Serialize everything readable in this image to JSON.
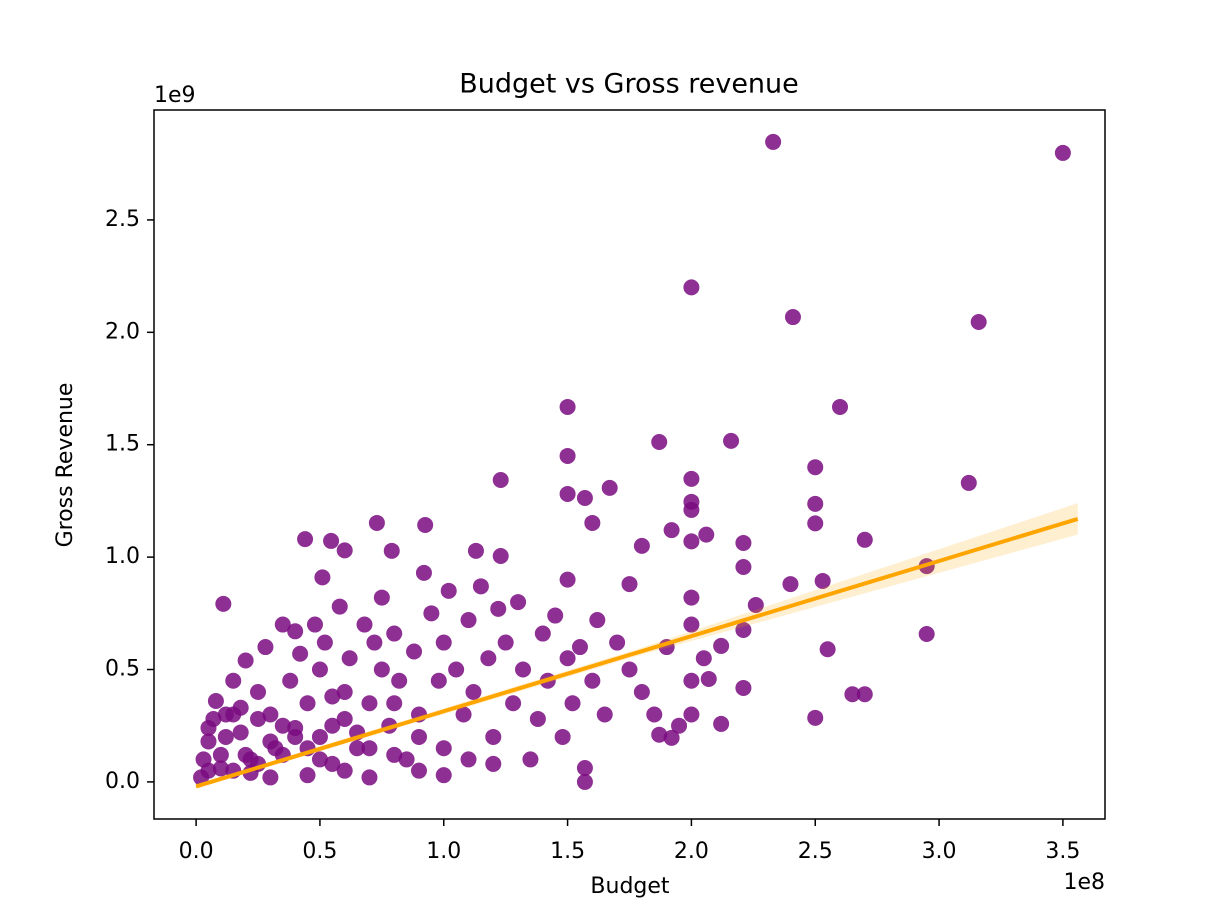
{
  "chart_data": {
    "type": "scatter",
    "title": "Budget vs Gross revenue",
    "x_label": "Budget",
    "y_label": "Gross Revenue",
    "x_offset_label": "1e8",
    "y_offset_label": "1e9",
    "point_color": "#7a0a80",
    "line_color": "#ffa500",
    "band_color": "#ffa500",
    "xlim": [
      -17000000.0,
      367000000.0
    ],
    "ylim": [
      -165000000.0,
      2989000000.0
    ],
    "xticks": [
      {
        "value": 0,
        "label": "0.0"
      },
      {
        "value": 50000000.0,
        "label": "0.5"
      },
      {
        "value": 100000000.0,
        "label": "1.0"
      },
      {
        "value": 150000000.0,
        "label": "1.5"
      },
      {
        "value": 200000000.0,
        "label": "2.0"
      },
      {
        "value": 250000000.0,
        "label": "2.5"
      },
      {
        "value": 300000000.0,
        "label": "3.0"
      },
      {
        "value": 350000000.0,
        "label": "3.5"
      }
    ],
    "yticks": [
      {
        "value": 0,
        "label": "0.0"
      },
      {
        "value": 500000000.0,
        "label": "0.5"
      },
      {
        "value": 1000000000.0,
        "label": "1.0"
      },
      {
        "value": 1500000000.0,
        "label": "1.5"
      },
      {
        "value": 2000000000.0,
        "label": "2.0"
      },
      {
        "value": 2500000000.0,
        "label": "2.5"
      }
    ],
    "x": [
      233000000.0,
      350000000.0,
      200000000.0,
      241000000.0,
      316000000.0,
      150000000.0,
      260000000.0,
      187000000.0,
      216000000.0,
      150000000.0,
      123000000.0,
      200000000.0,
      250000000.0,
      312000000.0,
      167000000.0,
      157000000.0,
      150000000.0,
      200000000.0,
      250000000.0,
      200000000.0,
      160000000.0,
      192000000.0,
      206000000.0,
      250000000.0,
      270000000.0,
      221000000.0,
      200000000.0,
      180000000.0,
      44000000.0,
      54500000.0,
      73000000.0,
      92500000.0,
      60000000.0,
      79000000.0,
      113000000.0,
      123000000.0,
      11000000.0,
      51000000.0,
      221000000.0,
      295000000.0,
      253000000.0,
      240000000.0,
      295000000.0,
      255000000.0,
      221000000.0,
      265000000.0,
      270000000.0,
      250000000.0,
      212000000.0,
      157000000.0,
      157000000.0,
      226000000.0,
      212000000.0,
      221000000.0,
      207000000.0,
      187000000.0,
      192000000.0,
      5000000.0,
      5000000.0,
      10000000.0,
      5000000.0,
      2000000.0,
      8000000.0,
      12000000.0,
      15000000.0,
      18000000.0,
      20000000.0,
      22000000.0,
      25000000.0,
      28000000.0,
      30000000.0,
      32000000.0,
      35000000.0,
      38000000.0,
      40000000.0,
      40000000.0,
      42000000.0,
      45000000.0,
      48000000.0,
      50000000.0,
      50000000.0,
      52000000.0,
      55000000.0,
      58000000.0,
      60000000.0,
      62000000.0,
      65000000.0,
      68000000.0,
      70000000.0,
      72000000.0,
      75000000.0,
      75000000.0,
      78000000.0,
      80000000.0,
      82000000.0,
      85000000.0,
      88000000.0,
      90000000.0,
      92000000.0,
      95000000.0,
      98000000.0,
      100000000.0,
      100000000.0,
      102000000.0,
      105000000.0,
      108000000.0,
      110000000.0,
      112000000.0,
      115000000.0,
      118000000.0,
      120000000.0,
      122000000.0,
      125000000.0,
      128000000.0,
      130000000.0,
      132000000.0,
      135000000.0,
      138000000.0,
      140000000.0,
      142000000.0,
      145000000.0,
      148000000.0,
      150000000.0,
      150000000.0,
      152000000.0,
      155000000.0,
      160000000.0,
      162000000.0,
      165000000.0,
      170000000.0,
      175000000.0,
      175000000.0,
      180000000.0,
      185000000.0,
      190000000.0,
      195000000.0,
      200000000.0,
      200000000.0,
      200000000.0,
      200000000.0,
      205000000.0,
      30000000.0,
      60000000.0,
      90000000.0,
      120000000.0,
      15000000.0,
      45000000.0,
      70000000.0,
      100000000.0,
      25000000.0,
      35000000.0,
      55000000.0,
      80000000.0,
      110000000.0,
      10000000.0,
      20000000.0,
      30000000.0,
      40000000.0,
      50000000.0,
      60000000.0,
      70000000.0,
      80000000.0,
      90000000.0,
      15000000.0,
      25000000.0,
      35000000.0,
      45000000.0,
      55000000.0,
      65000000.0,
      3000000.0,
      7000000.0,
      12000000.0,
      18000000.0,
      22000000.0
    ],
    "y": [
      2847000000.0,
      2798000000.0,
      2200000000.0,
      2068000000.0,
      2046000000.0,
      1668000000.0,
      1668000000.0,
      1512000000.0,
      1517000000.0,
      1450000000.0,
      1343000000.0,
      1348000000.0,
      1400000000.0,
      1330000000.0,
      1308000000.0,
      1263000000.0,
      1281000000.0,
      1246000000.0,
      1237000000.0,
      1210000000.0,
      1152000000.0,
      1120000000.0,
      1100000000.0,
      1150000000.0,
      1077000000.0,
      1063000000.0,
      1070000000.0,
      1050000000.0,
      1080000000.0,
      1072000000.0,
      1152000000.0,
      1143000000.0,
      1030000000.0,
      1028000000.0,
      1028000000.0,
      1005000000.0,
      792000000.0,
      910000000.0,
      956000000.0,
      960000000.0,
      894000000.0,
      880000000.0,
      658000000.0,
      590000000.0,
      418000000.0,
      390000000.0,
      390000000.0,
      285000000.0,
      258000000.0,
      0.0,
      62000000.0,
      787000000.0,
      605000000.0,
      676000000.0,
      458000000.0,
      210000000.0,
      196000000.0,
      240000000.0,
      180000000.0,
      120000000.0,
      50000000.0,
      20000000.0,
      360000000.0,
      300000000.0,
      450000000.0,
      220000000.0,
      540000000.0,
      100000000.0,
      400000000.0,
      600000000.0,
      300000000.0,
      150000000.0,
      700000000.0,
      450000000.0,
      670000000.0,
      200000000.0,
      570000000.0,
      350000000.0,
      700000000.0,
      500000000.0,
      100000000.0,
      620000000.0,
      250000000.0,
      780000000.0,
      400000000.0,
      550000000.0,
      150000000.0,
      700000000.0,
      350000000.0,
      620000000.0,
      820000000.0,
      500000000.0,
      250000000.0,
      660000000.0,
      450000000.0,
      100000000.0,
      580000000.0,
      300000000.0,
      930000000.0,
      750000000.0,
      450000000.0,
      620000000.0,
      150000000.0,
      850000000.0,
      500000000.0,
      300000000.0,
      720000000.0,
      400000000.0,
      870000000.0,
      550000000.0,
      200000000.0,
      770000000.0,
      620000000.0,
      350000000.0,
      800000000.0,
      500000000.0,
      100000000.0,
      280000000.0,
      660000000.0,
      450000000.0,
      740000000.0,
      200000000.0,
      550000000.0,
      900000000.0,
      350000000.0,
      600000000.0,
      450000000.0,
      720000000.0,
      300000000.0,
      620000000.0,
      500000000.0,
      880000000.0,
      400000000.0,
      300000000.0,
      600000000.0,
      250000000.0,
      820000000.0,
      700000000.0,
      450000000.0,
      300000000.0,
      550000000.0,
      20000000.0,
      50000000.0,
      50000000.0,
      80000000.0,
      50000000.0,
      30000000.0,
      20000000.0,
      30000000.0,
      280000000.0,
      120000000.0,
      80000000.0,
      120000000.0,
      100000000.0,
      60000000.0,
      120000000.0,
      180000000.0,
      240000000.0,
      200000000.0,
      280000000.0,
      150000000.0,
      350000000.0,
      200000000.0,
      300000000.0,
      80000000.0,
      250000000.0,
      150000000.0,
      380000000.0,
      220000000.0,
      100000000.0,
      280000000.0,
      200000000.0,
      330000000.0,
      40000000.0
    ],
    "fit_x": [
      0,
      178000000.0,
      356000000.0
    ],
    "fit_y": [
      -20000000.0,
      575000000.0,
      1170000000.0
    ],
    "ci_lower": [
      -30000000.0,
      560000000.0,
      1100000000.0
    ],
    "ci_upper": [
      -10000000.0,
      590000000.0,
      1240000000.0
    ]
  }
}
